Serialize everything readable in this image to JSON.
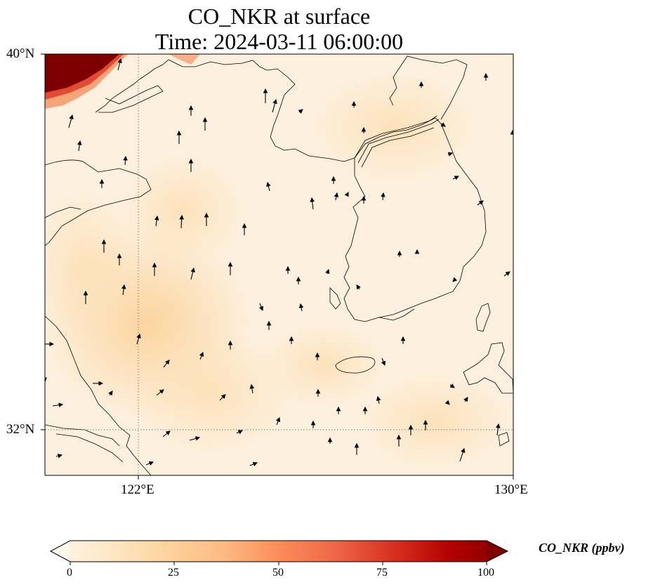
{
  "title": {
    "line1": "CO_NKR at surface",
    "line2": "Time: 2024-03-11 06:00:00"
  },
  "axes": {
    "lat_labels": [
      "40°N",
      "32°N"
    ],
    "lon_labels": [
      "122°E",
      "130°E"
    ],
    "lat_range": [
      31,
      40
    ],
    "lon_range": [
      120,
      130
    ],
    "gridlines": {
      "lons": [
        122
      ],
      "lats": [
        32
      ],
      "style": "dotted"
    }
  },
  "colorbar": {
    "label": "CO_NKR (ppbv)",
    "ticks": [
      "0",
      "25",
      "50",
      "75",
      "100"
    ],
    "range": [
      0,
      100
    ],
    "extend": "both",
    "colormap": "OrRd",
    "colors": [
      "#fff7ec",
      "#fee8c8",
      "#fdd49e",
      "#fdbb84",
      "#fc8d59",
      "#ef6548",
      "#d7301f",
      "#b30000",
      "#7f0000"
    ]
  },
  "map": {
    "background_color": "#fdf0de",
    "high_concentration_color": "#7f0000",
    "coastline_color": "#000000",
    "icons": [
      "wind-vector-arrow"
    ]
  }
}
